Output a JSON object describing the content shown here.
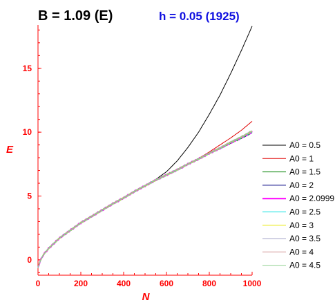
{
  "chart_data": {
    "type": "line",
    "title": "B = 1.09 (E)",
    "subtitle": "h = 0.05 (1925)",
    "xlabel": "N",
    "ylabel": "E",
    "xlim": [
      0,
      1000
    ],
    "ylim": [
      -1.2,
      18.4
    ],
    "xticks": [
      "0",
      "200",
      "400",
      "600",
      "800",
      "1000"
    ],
    "yticks": [
      "0",
      "5",
      "10",
      "15"
    ],
    "grid": false,
    "legend_position": "right",
    "base_curve": {
      "x": [
        0,
        10,
        25,
        50,
        75,
        100,
        150,
        200,
        250,
        300,
        350,
        400,
        450,
        500,
        550,
        600,
        650,
        700,
        750,
        800,
        850,
        900,
        950,
        1000
      ],
      "y": [
        -0.6,
        -0.1,
        0.4,
        0.9,
        1.3,
        1.7,
        2.3,
        2.9,
        3.4,
        3.9,
        4.4,
        4.85,
        5.35,
        5.8,
        6.25,
        6.65,
        7.05,
        7.5,
        7.9,
        8.35,
        8.75,
        9.2,
        9.6,
        10.05
      ]
    },
    "series": [
      {
        "name": "A0 = 0.5",
        "color": "#000000",
        "width": 1,
        "x": [
          0,
          500,
          550,
          600,
          650,
          700,
          750,
          800,
          850,
          900,
          950,
          1000
        ],
        "y": [
          null,
          5.8,
          6.3,
          6.9,
          7.75,
          8.8,
          10.0,
          11.4,
          12.9,
          14.6,
          16.4,
          18.3
        ]
      },
      {
        "name": "A0 = 1",
        "color": "#e00000",
        "width": 1,
        "x": [
          700,
          750,
          800,
          850,
          900,
          950,
          1000
        ],
        "y": [
          7.5,
          7.95,
          8.45,
          9.0,
          9.55,
          10.15,
          10.85
        ]
      },
      {
        "name": "A0 = 1.5",
        "color": "#008000",
        "width": 1
      },
      {
        "name": "A0 = 2",
        "color": "#000080",
        "width": 1
      },
      {
        "name": "A0 = 2.0999",
        "color": "#ff00ff",
        "width": 2
      },
      {
        "name": "A0 = 2.5",
        "color": "#00e0e0",
        "width": 1
      },
      {
        "name": "A0 = 3",
        "color": "#e8e800",
        "width": 1
      },
      {
        "name": "A0 = 3.5",
        "color": "#a0a0c8",
        "width": 1
      },
      {
        "name": "A0 = 4",
        "color": "#d09090",
        "width": 1
      },
      {
        "name": "A0 = 4.5",
        "color": "#90d090",
        "width": 1
      }
    ]
  }
}
